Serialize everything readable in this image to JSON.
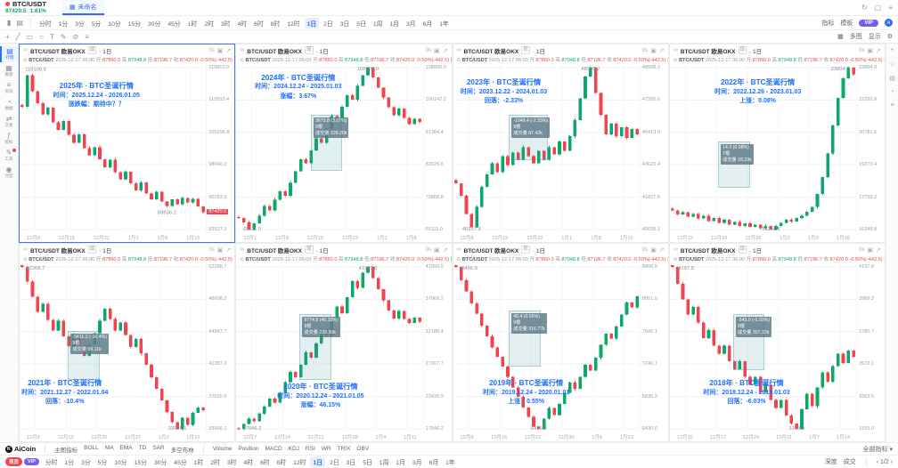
{
  "app": {
    "symbol": "BTC/USDT",
    "price": "87420.5",
    "change_pct": "1.81%",
    "tab": "未命名",
    "colors": {
      "up": "#0aa869",
      "down": "#f0454e",
      "accent": "#2f6bff",
      "annotation": "#1f6fff"
    }
  },
  "toolbar": {
    "timeframes": [
      "分时",
      "1分",
      "3分",
      "5分",
      "10分",
      "15分",
      "30分",
      "45分",
      "1时",
      "2时",
      "3时",
      "4时",
      "6时",
      "8时",
      "12时",
      "1日",
      "2日",
      "3日",
      "5日",
      "1周",
      "1月",
      "3月",
      "6月",
      "1年"
    ],
    "active_timeframe": "1日",
    "right": {
      "indicators": "指标",
      "templates": "模板",
      "vip": "VIP",
      "multi": "多图",
      "display": "显示"
    },
    "draw_tools": [
      {
        "glyph": "+",
        "name": "crosshair-icon"
      },
      {
        "glyph": "╱",
        "name": "trendline-icon"
      },
      {
        "glyph": "▭",
        "name": "rectangle-tool-icon"
      },
      {
        "glyph": "○",
        "name": "circle-tool-icon"
      },
      {
        "glyph": "T",
        "name": "text-tool-icon"
      },
      {
        "glyph": "✎",
        "name": "pencil-icon"
      },
      {
        "glyph": "⊘",
        "name": "eraser-icon"
      },
      {
        "glyph": "≡",
        "name": "layers-icon"
      }
    ]
  },
  "sidebar": {
    "items": [
      {
        "label": "行情",
        "icon": "▤",
        "active": true,
        "badge": false
      },
      {
        "label": "看盘",
        "icon": "▦",
        "active": false,
        "badge": false
      },
      {
        "label": "资讯",
        "icon": "≡",
        "active": false,
        "badge": false
      },
      {
        "label": "数据",
        "icon": "◔",
        "active": false,
        "badge": false
      },
      {
        "label": "交易",
        "icon": "⇄",
        "active": false,
        "badge": false
      },
      {
        "label": "指标",
        "icon": "ƒ",
        "active": false,
        "badge": false
      },
      {
        "label": "工具",
        "icon": "✎",
        "active": false,
        "badge": true
      },
      {
        "label": "社区",
        "icon": "◉",
        "active": false,
        "badge": false
      }
    ],
    "right_icons": [
      "+",
      "☆",
      "▤",
      "◔",
      "≡"
    ]
  },
  "panel": {
    "name": "BTC/USDT 欧易OKX",
    "market": "现",
    "period": "1日",
    "countdown": "0s"
  },
  "ohlc": {
    "time": "2025-12-17 06:00",
    "open": "87860.0",
    "high": "87948.8",
    "low": "87196.7",
    "close": "87420.0",
    "change": "-0.50%(-442.5)",
    "amplitude": "振幅:0.86%"
  },
  "chart_data": [
    {
      "type": "candlestick",
      "title": "2025年 · BTC圣诞行情",
      "time_line": "时间：2025.12.24 - 2026.01.05",
      "result_line": "涨跌幅：期待中？？",
      "pos": {
        "x": "18%",
        "y": "10%"
      },
      "min": 83527.1,
      "max": 119810.0,
      "axis": [
        "119810.0",
        "112553.4",
        "105296.8",
        "98040.2",
        "90783.6",
        "83527.1"
      ],
      "x_labels": [
        "12月8",
        "12月15",
        "12月22",
        "1月1",
        "1月8",
        "1月15"
      ],
      "closes": [
        111000,
        118108,
        114500,
        111800,
        109300,
        110800,
        107500,
        105900,
        107800,
        104800,
        103000,
        104900,
        101800,
        100200,
        102000,
        99300,
        97500,
        99200,
        96400,
        94800,
        96500,
        93900,
        92300,
        94100,
        91600,
        90300,
        92000,
        89800,
        88836,
        90300,
        89200,
        90600,
        89600,
        90400,
        88700,
        87420
      ],
      "high_label": "118108.8",
      "low_label": "88836.2",
      "low_at": 28,
      "price_tag": "87420.0",
      "measure": null
    },
    {
      "type": "candlestick",
      "title": "2024年 · BTC圣诞行情",
      "time_line": "时间：2024.12.24 - 2025.01.03",
      "result_line": "涨幅：3.67%",
      "pos": {
        "x": "10%",
        "y": "5%"
      },
      "min": 65111.0,
      "max": 108900.0,
      "axis": [
        "108900.0",
        "100142.2",
        "91384.4",
        "82626.6",
        "73868.8",
        "65111.0"
      ],
      "x_labels": [
        "12月1",
        "12月8",
        "12月15",
        "12月22",
        "1月1",
        "1月8"
      ],
      "closes": [
        68200,
        67000,
        65111,
        66800,
        68900,
        71500,
        70300,
        73200,
        75400,
        74200,
        77800,
        80900,
        84100,
        83000,
        86500,
        89800,
        88600,
        92400,
        95800,
        94600,
        98300,
        101500,
        100200,
        104000,
        106800,
        108900,
        106200,
        103500,
        100800,
        98200,
        96000,
        97800,
        95300,
        93600,
        95100,
        94200
      ],
      "high_label": "108900.0",
      "low_label": "65111.0",
      "price_tag": null,
      "measure": {
        "x": "40%",
        "y": "30%",
        "w": "16%",
        "h": "32%",
        "lines": [
          "3675.8 (3.67%)",
          "9根",
          "成交量 228.20k"
        ]
      }
    },
    {
      "type": "candlestick",
      "title": "2023年 · BTC圣诞行情",
      "time_line": "时间：2023.12.22 - 2024.01.03",
      "result_line": "回落：-2.33%",
      "pos": {
        "x": "4%",
        "y": "8%"
      },
      "min": 40035.1,
      "max": 48998.2,
      "axis": [
        "48998.2",
        "47205.6",
        "45413.0",
        "43620.4",
        "41827.8",
        "40035.1"
      ],
      "x_labels": [
        "12月8",
        "12月15",
        "12月22",
        "1月1",
        "1月8",
        "1月15"
      ],
      "closes": [
        42600,
        41900,
        40900,
        40157,
        41300,
        42400,
        43100,
        43700,
        43200,
        44100,
        43600,
        44300,
        43900,
        44600,
        44100,
        43700,
        44400,
        43900,
        44600,
        44200,
        44900,
        44400,
        45200,
        46100,
        47300,
        48500,
        48998,
        47600,
        46400,
        45300,
        45900,
        45200,
        45700,
        45100,
        45600,
        45300
      ],
      "high_label": "48998.2",
      "low_label": "40157.3",
      "price_tag": null,
      "measure": {
        "x": "30%",
        "y": "30%",
        "w": "20%",
        "h": "26%",
        "lines": [
          "-1049.4 (-2.33%)",
          "9根",
          "成交量 87.42k"
        ]
      }
    },
    {
      "type": "candlestick",
      "title": "2022年 · BTC圣诞行情",
      "time_line": "时间：2022.12.26 - 2023.01.03",
      "result_line": "上涨：0.08%",
      "pos": {
        "x": "24%",
        "y": "8%"
      },
      "min": 16248.8,
      "max": 23804.0,
      "axis": [
        "23804.0",
        "22292.8",
        "20781.6",
        "19270.4",
        "17759.2",
        "16248.8"
      ],
      "x_labels": [
        "12月12",
        "12月19",
        "12月26",
        "1月2",
        "1月9",
        "1月16"
      ],
      "closes": [
        17150,
        16950,
        17050,
        16850,
        16980,
        16760,
        16890,
        16640,
        16790,
        16560,
        16700,
        16480,
        16600,
        16420,
        16540,
        16380,
        16480,
        16320,
        16420,
        16248,
        16420,
        16560,
        16700,
        16620,
        16780,
        16900,
        17080,
        17300,
        17900,
        18700,
        19800,
        21100,
        22400,
        23300,
        23804,
        23500
      ],
      "high_label": "23804.0",
      "low_label": "16248.8",
      "price_tag": null,
      "measure": {
        "x": "26%",
        "y": "46%",
        "w": "16%",
        "h": "26%",
        "lines": [
          "14.3 (0.08%)",
          "7根",
          "成交量 18.23k"
        ]
      }
    },
    {
      "type": "candlestick",
      "title": "2021年 · BTC圣诞行情",
      "time_line": "时间：2021.12.27 - 2022.01.04",
      "result_line": "回落：-10.4%",
      "pos": {
        "x": "1%",
        "y": "68%"
      },
      "min": 33966.1,
      "max": 52268.7,
      "axis": [
        "52268.7",
        "48608.2",
        "44947.7",
        "41287.2",
        "37626.6",
        "33966.1"
      ],
      "x_labels": [
        "12月6",
        "12月13",
        "12月20",
        "12月27",
        "1月3",
        "1月10"
      ],
      "closes": [
        52268,
        50600,
        48900,
        47200,
        48100,
        46300,
        45100,
        46200,
        44400,
        43300,
        44600,
        43400,
        42200,
        43500,
        44800,
        46200,
        47567,
        46400,
        45100,
        46000,
        44600,
        43200,
        44100,
        42500,
        41200,
        39800,
        38500,
        37200,
        35900,
        34700,
        33966,
        35200,
        34400,
        35800,
        36400,
        36100
      ],
      "high_label": "52268.7",
      "low_label": "33966.1",
      "price_tag": null,
      "measure": {
        "x": "26%",
        "y": "40%",
        "w": "16%",
        "h": "28%",
        "lines": [
          "-5411.2 (-10.4%)",
          "9根",
          "成交量 99.11k"
        ]
      }
    },
    {
      "type": "candlestick",
      "title": "2020年 · BTC圣诞行情",
      "time_line": "时间：2020.12.24 - 2021.01.05",
      "result_line": "涨幅：46.15%",
      "pos": {
        "x": "22%",
        "y": "70%"
      },
      "min": 17546.2,
      "max": 41950.0,
      "axis": [
        "41950.0",
        "37069.2",
        "32188.4",
        "27307.7",
        "22426.9",
        "17546.2"
      ],
      "x_labels": [
        "12月7",
        "12月14",
        "12月21",
        "12月28",
        "1月4",
        "1月11"
      ],
      "closes": [
        17546,
        18300,
        19100,
        18700,
        19800,
        20900,
        22100,
        21500,
        23000,
        24600,
        26100,
        25300,
        27200,
        29100,
        28300,
        30400,
        32500,
        31600,
        33800,
        36000,
        35000,
        37400,
        39800,
        38800,
        41100,
        41950,
        40300,
        38600,
        36900,
        35400,
        34200,
        35300,
        34100,
        33500,
        34300,
        33700
      ],
      "high_label": "41950.0",
      "low_label": "17546.2",
      "price_tag": null,
      "measure": {
        "x": "34%",
        "y": "30%",
        "w": "16%",
        "h": "38%",
        "lines": [
          "9774.8 (46.15%)",
          "9根",
          "成交量 228.20k"
        ]
      }
    },
    {
      "type": "candlestick",
      "title": "2019年 · BTC圣诞行情",
      "time_line": "时间：2019.12.24 - 2020.01.01",
      "result_line": "上涨：0.55%",
      "pos": {
        "x": "16%",
        "y": "68%"
      },
      "min": 6430.0,
      "max": 8456.9,
      "axis": [
        "8456.9",
        "8051.5",
        "7646.1",
        "7240.7",
        "6835.3",
        "6430.0"
      ],
      "x_labels": [
        "12月9",
        "12月16",
        "12月23",
        "12月30",
        "1月6",
        "1月13"
      ],
      "closes": [
        8456,
        8290,
        8150,
        8000,
        7870,
        7720,
        7590,
        7450,
        7330,
        7210,
        7080,
        6950,
        6830,
        6700,
        6580,
        6460,
        6430,
        6560,
        6690,
        6600,
        6740,
        6880,
        7010,
        6930,
        7080,
        7230,
        7160,
        7320,
        7480,
        7620,
        7560,
        7710,
        7860,
        8010,
        7950,
        8090
      ],
      "high_label": "8456.9",
      "low_label": "6430.0",
      "price_tag": null,
      "measure": {
        "x": "30%",
        "y": "28%",
        "w": "16%",
        "h": "32%",
        "lines": [
          "40.4 (0.55%)",
          "9根",
          "成交量 316.77k"
        ]
      }
    },
    {
      "type": "candlestick",
      "title": "2018年 · BTC圣诞行情",
      "time_line": "时间：2018.12.24 - 2019.01.03",
      "result_line": "回落：-6.03%",
      "pos": {
        "x": "18%",
        "y": "68%"
      },
      "min": 3155.0,
      "max": 4197.8,
      "axis": [
        "4197.8",
        "3989.2",
        "3780.7",
        "3572.1",
        "3363.5",
        "3155.0"
      ],
      "x_labels": [
        "12月10",
        "12月17",
        "12月24",
        "12月31",
        "1月7",
        "1月14"
      ],
      "closes": [
        4197,
        4090,
        3990,
        3890,
        3940,
        3840,
        3740,
        3790,
        3690,
        3640,
        3690,
        3590,
        3540,
        3590,
        3490,
        3440,
        3490,
        3390,
        3440,
        3340,
        3290,
        3340,
        3240,
        3190,
        3155,
        3280,
        3380,
        3300,
        3420,
        3520,
        3460,
        3560,
        3640,
        3580,
        3660,
        3620
      ],
      "high_label": "4197.8",
      "low_label": "3155.0",
      "price_tag": null,
      "measure": {
        "x": "34%",
        "y": "30%",
        "w": "16%",
        "h": "32%",
        "lines": [
          "-243.0 (-6.03%)",
          "9根",
          "成交量 307.22k"
        ]
      }
    }
  ],
  "bottom": {
    "brand": "AiCoin",
    "main_indicators": [
      "主图指标",
      "BOLL",
      "MA",
      "EMA",
      "TD",
      "SAR",
      "多空布林"
    ],
    "sub_indicators": [
      "Volume",
      "Position",
      "MACD",
      "KDJ",
      "RSI",
      "WR",
      "TRIX",
      "OBV"
    ],
    "more_label": "全部指标 ▾",
    "tags": [
      {
        "label": "现货",
        "color": "#f0454e"
      },
      {
        "label": "VIP",
        "color": "#7b5cf0"
      }
    ],
    "depth_label": "深度",
    "trades_label": "成交",
    "pager": "‹ 1/2 ›"
  }
}
